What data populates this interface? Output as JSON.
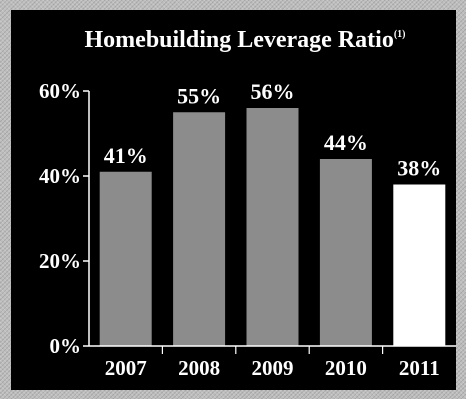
{
  "chart_data": {
    "type": "bar",
    "title": "Homebuilding Leverage Ratio",
    "title_superscript": "(1)",
    "categories": [
      "2007",
      "2008",
      "2009",
      "2010",
      "2011"
    ],
    "values": [
      41,
      55,
      56,
      44,
      38
    ],
    "data_labels": [
      "41%",
      "55%",
      "56%",
      "44%",
      "38%"
    ],
    "yticks": [
      0,
      20,
      40,
      60
    ],
    "ytick_labels": [
      "0%",
      "20%",
      "40%",
      "60%"
    ],
    "ylim": [
      0,
      60
    ],
    "xlabel": "",
    "ylabel": "",
    "grid": false,
    "legend": "none",
    "colors": {
      "background": "#000000",
      "bar": "#8c8c8c",
      "highlight_bar": "#ffffff",
      "text": "#ffffff",
      "axis": "#ffffff",
      "frame": "#bdbdbd"
    },
    "highlight_index": 4
  }
}
